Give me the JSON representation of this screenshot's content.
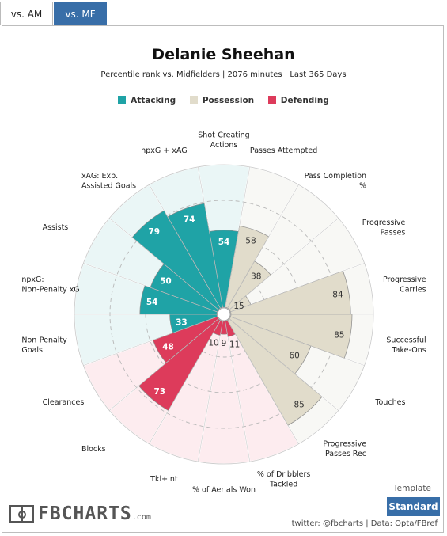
{
  "tabs": [
    {
      "label": "vs. AM"
    },
    {
      "label": "vs. MF"
    }
  ],
  "header": {
    "title": "Delanie Sheehan",
    "subtitle": "Percentile rank vs. Midfielders | 2076 minutes | Last 365 Days"
  },
  "legend": [
    {
      "label": "Attacking",
      "color": "#1fa3a6"
    },
    {
      "label": "Possession",
      "color": "#e1dccb"
    },
    {
      "label": "Defending",
      "color": "#dd3b5b"
    }
  ],
  "chart_data": {
    "type": "polar-bar",
    "title": "Delanie Sheehan",
    "subtitle": "Percentile rank vs. Midfielders | 2076 minutes | Last 365 Days",
    "rlim": [
      0,
      100
    ],
    "grid": true,
    "legend_position": "top",
    "series": [
      {
        "name": "Attacking",
        "color": "#1fa3a6",
        "background": "#eaf6f6"
      },
      {
        "name": "Possession",
        "color": "#e1dccb",
        "background": "#f8f8f5"
      },
      {
        "name": "Defending",
        "color": "#dd3b5b",
        "background": "#fdecef"
      }
    ],
    "categories": [
      {
        "label": "Shot-Creating Actions",
        "value": 54,
        "group": "Attacking"
      },
      {
        "label": "Passes Attempted",
        "value": 58,
        "group": "Possession"
      },
      {
        "label": "Pass Completion %",
        "value": 38,
        "group": "Possession"
      },
      {
        "label": "Progressive Passes",
        "value": 15,
        "group": "Possession"
      },
      {
        "label": "Progressive Carries",
        "value": 84,
        "group": "Possession"
      },
      {
        "label": "Successful Take-Ons",
        "value": 85,
        "group": "Possession"
      },
      {
        "label": "Touches",
        "value": 60,
        "group": "Possession"
      },
      {
        "label": "Progressive Passes Rec",
        "value": 85,
        "group": "Possession"
      },
      {
        "label": "% of Dribblers Tackled",
        "value": 11,
        "group": "Defending"
      },
      {
        "label": "% of Aerials Won",
        "value": 9,
        "group": "Defending"
      },
      {
        "label": "Tkl+Int",
        "value": 10,
        "group": "Defending"
      },
      {
        "label": "Blocks",
        "value": 73,
        "group": "Defending"
      },
      {
        "label": "Clearances",
        "value": 48,
        "group": "Defending"
      },
      {
        "label": "Non-Penalty Goals",
        "value": 33,
        "group": "Attacking"
      },
      {
        "label": "npxG: Non-Penalty xG",
        "value": 54,
        "group": "Attacking"
      },
      {
        "label": "Assists",
        "value": 50,
        "group": "Attacking"
      },
      {
        "label": "xAG: Exp. Assisted Goals",
        "value": 79,
        "group": "Attacking"
      },
      {
        "label": "npxG + xAG",
        "value": 74,
        "group": "Attacking"
      }
    ]
  },
  "logo": {
    "text": "FBCHARTS",
    "suffix": ".com"
  },
  "template": {
    "label": "Template",
    "button": "Standard"
  },
  "footer": {
    "credit": "twitter: @fbcharts | Data: Opta/FBref"
  }
}
